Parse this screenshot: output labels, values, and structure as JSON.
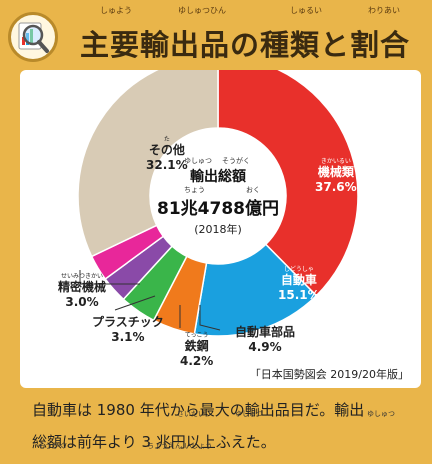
{
  "header": {
    "title": "主要輸出品の種類と割合",
    "ruby": {
      "main": "しゅよう",
      "export": "ゆしゅつひん",
      "kind": "しゅるい",
      "ratio": "わりあい"
    },
    "icon": "magnifier-chart-icon"
  },
  "chart_data": {
    "type": "pie",
    "center_title": "輸出総額",
    "center_total": "81兆4788億円",
    "center_year": "(2018年)",
    "center_ruby": {
      "export": "ゆしゅつ",
      "total": "そうがく",
      "trillion": "ちょう",
      "hundred_million": "おく"
    },
    "slices": [
      {
        "label": "機械類",
        "value": 37.6,
        "display": "37.6%",
        "color": "#e8302b",
        "ruby": "きかいるい"
      },
      {
        "label": "自動車",
        "value": 15.1,
        "display": "15.1%",
        "color": "#1aa0df",
        "ruby": "じどうしゃ"
      },
      {
        "label": "自動車部品",
        "value": 4.9,
        "display": "4.9%",
        "color": "#f07a1c",
        "ruby": ""
      },
      {
        "label": "鉄鋼",
        "value": 4.2,
        "display": "4.2%",
        "color": "#3ab54a",
        "ruby": "てっこう"
      },
      {
        "label": "プラスチック",
        "value": 3.1,
        "display": "3.1%",
        "color": "#8a4aa8",
        "ruby": ""
      },
      {
        "label": "精密機械",
        "value": 3.0,
        "display": "3.0%",
        "color": "#e8279a",
        "ruby": "せいみつきかい"
      },
      {
        "label": "その他",
        "value": 32.1,
        "display": "32.1%",
        "color": "#d8cbb5",
        "ruby": "た"
      }
    ]
  },
  "source": "「日本国勢図会 2019/20年版」",
  "caption": {
    "line1": "自動車は 1980 年代から最大の輸出品目だ。輸出",
    "line2": "総額は前年より 3 兆円以上ふえた。",
    "ruby": {
      "largest": "さいだい",
      "export1": "ゆしゅつ",
      "export2": "ゆしゅつ",
      "total": "そうがく",
      "increase": "ちょうえん いじょう"
    }
  }
}
